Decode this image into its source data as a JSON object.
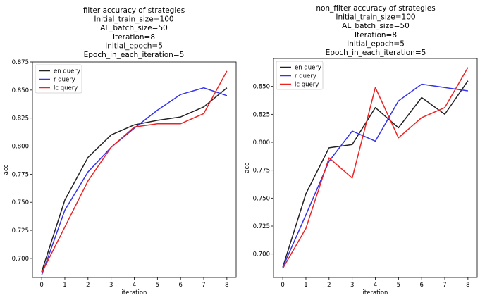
{
  "chart_data": [
    {
      "type": "line",
      "title": [
        "filter accuracy of strategies",
        "Initial_train_size=100",
        "AL_batch_size=50",
        "Iteration=8",
        "Initial_epoch=5",
        "Epoch_in_each_iteration=5"
      ],
      "xlabel": "iteration",
      "ylabel": "acc",
      "x": [
        0,
        1,
        2,
        3,
        4,
        5,
        6,
        7,
        8
      ],
      "xticks": [
        "0",
        "1",
        "2",
        "3",
        "4",
        "5",
        "6",
        "7",
        "8"
      ],
      "yticks": [
        "0.700",
        "0.725",
        "0.750",
        "0.775",
        "0.800",
        "0.825",
        "0.850",
        "0.875"
      ],
      "ylim": [
        0.683,
        0.875
      ],
      "xlim": [
        -0.4,
        8.4
      ],
      "legend": "top-left",
      "series": [
        {
          "name": "en query",
          "color": "#222222",
          "values": [
            0.688,
            0.752,
            0.79,
            0.81,
            0.819,
            0.823,
            0.826,
            0.835,
            0.852
          ]
        },
        {
          "name": "r query",
          "color": "#3333ee",
          "values": [
            0.685,
            0.743,
            0.777,
            0.799,
            0.816,
            0.832,
            0.846,
            0.852,
            0.845
          ]
        },
        {
          "name": "lc query",
          "color": "#ee2222",
          "values": [
            0.687,
            0.728,
            0.769,
            0.799,
            0.817,
            0.82,
            0.82,
            0.829,
            0.867
          ]
        }
      ]
    },
    {
      "type": "line",
      "title": [
        "non_filter accuracy of strategies",
        "Initial_train_size=100",
        "AL_batch_size=50",
        "Iteration=8",
        "Initial_epoch=5",
        "Epoch_in_each_iteration=5"
      ],
      "xlabel": "iteration",
      "ylabel": "acc",
      "x": [
        0,
        1,
        2,
        3,
        4,
        5,
        6,
        7,
        8
      ],
      "xticks": [
        "0",
        "1",
        "2",
        "3",
        "4",
        "5",
        "6",
        "7",
        "8"
      ],
      "yticks": [
        "0.700",
        "0.725",
        "0.750",
        "0.775",
        "0.800",
        "0.825",
        "0.850"
      ],
      "ylim": [
        0.679,
        0.875
      ],
      "xlim": [
        -0.4,
        8.4
      ],
      "legend": "top-left",
      "series": [
        {
          "name": "en query",
          "color": "#222222",
          "values": [
            0.688,
            0.754,
            0.795,
            0.798,
            0.831,
            0.813,
            0.84,
            0.825,
            0.855
          ]
        },
        {
          "name": "r query",
          "color": "#3333ee",
          "values": [
            0.688,
            0.735,
            0.783,
            0.81,
            0.801,
            0.837,
            0.852,
            0.849,
            0.846
          ]
        },
        {
          "name": "lc query",
          "color": "#ee2222",
          "values": [
            0.687,
            0.723,
            0.786,
            0.768,
            0.849,
            0.804,
            0.822,
            0.831,
            0.867
          ]
        }
      ]
    }
  ]
}
